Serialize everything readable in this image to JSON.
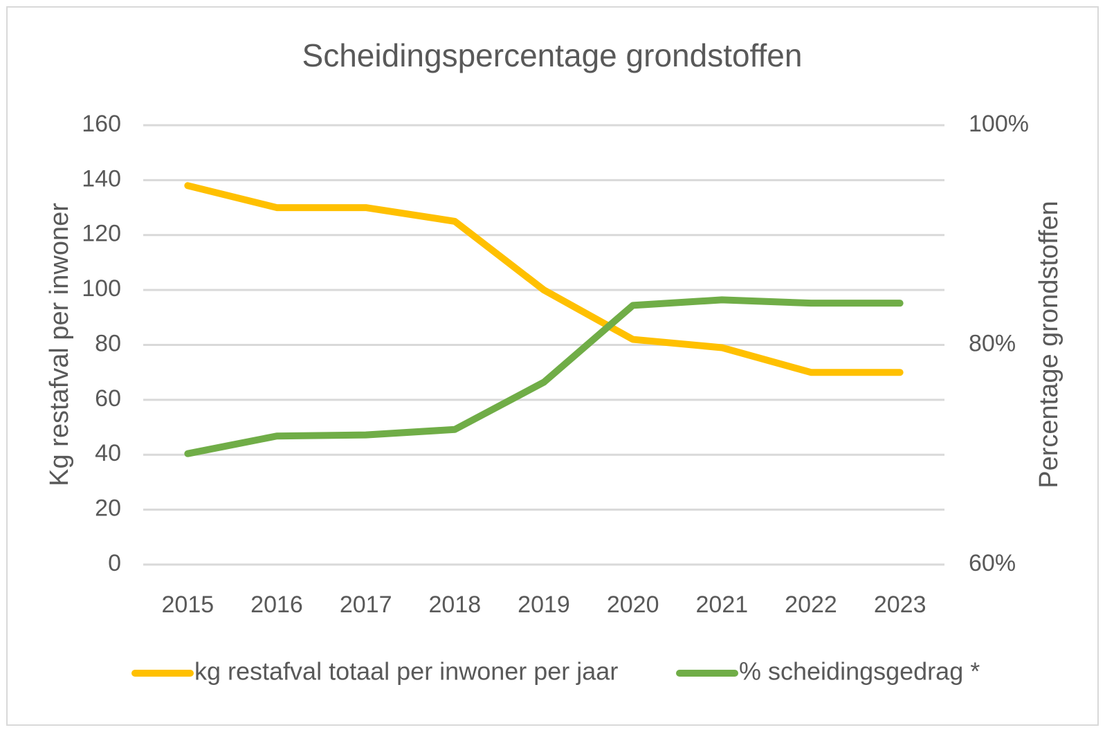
{
  "chart_data": {
    "type": "line",
    "title": "Scheidingspercentage grondstoffen",
    "y_label": "Kg restafval per inwoner",
    "y2_label": "Percentage grondstoffen",
    "categories": [
      "2015",
      "2016",
      "2017",
      "2018",
      "2019",
      "2020",
      "2021",
      "2022",
      "2023"
    ],
    "series": [
      {
        "name": "kg restafval totaal per inwoner per jaar",
        "color": "#ffc000",
        "values": [
          138,
          130,
          130,
          125,
          100,
          82,
          79,
          70,
          70
        ]
      },
      {
        "name": "% scheidingsgedrag *",
        "color": "#70ad47",
        "axis": "y2",
        "values": [
          70.1,
          71.7,
          71.8,
          72.3,
          76.6,
          83.6,
          84.1,
          83.8,
          83.8
        ]
      }
    ],
    "ylim": [
      0,
      160
    ],
    "yticks": [
      0,
      20,
      40,
      60,
      80,
      100,
      120,
      140,
      160
    ],
    "y2lim": [
      60,
      100
    ],
    "y2ticks": [
      {
        "value": 60,
        "label": "60%"
      },
      {
        "value": 80,
        "label": "80%"
      },
      {
        "value": 100,
        "label": "100%"
      }
    ],
    "grid": true,
    "legend": "bottom"
  }
}
